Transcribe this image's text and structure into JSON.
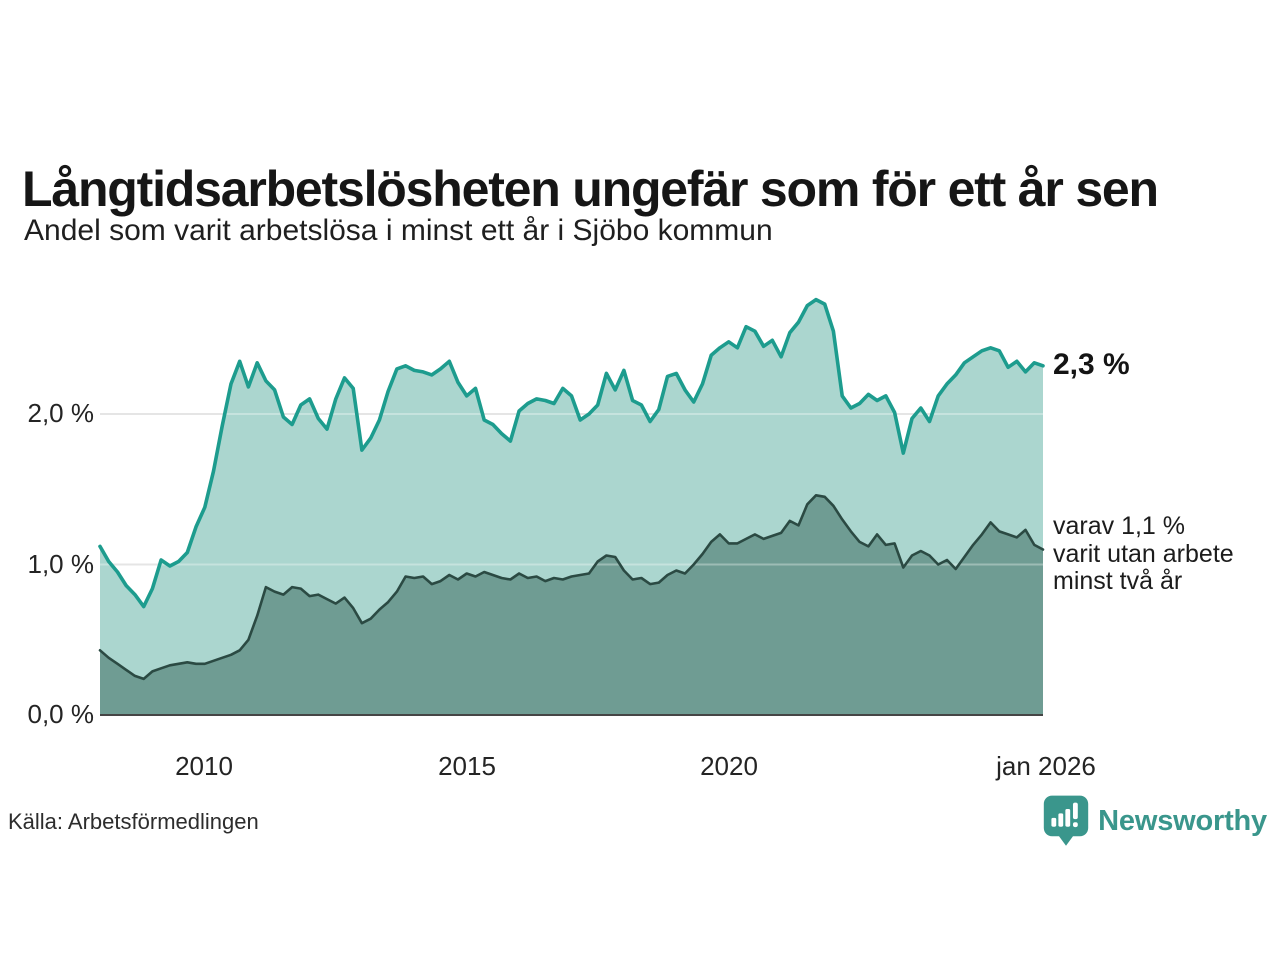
{
  "chart_data": {
    "type": "area",
    "title": "Långtidsarbetslösheten ungefär som för ett år sen",
    "subtitle": "Andel som varit arbetslösa i minst ett år i Sjöbo kommun",
    "unit": "%",
    "grid": true,
    "legend_position": "none",
    "x_start_year": 2008,
    "x_months_step": 2,
    "x_ticks": [
      {
        "label": "2010",
        "year": 2010
      },
      {
        "label": "2015",
        "year": 2015
      },
      {
        "label": "2020",
        "year": 2020
      },
      {
        "label": "jan 2026",
        "year": 2026
      }
    ],
    "y_ticks": [
      {
        "label": "0,0 %",
        "value": 0
      },
      {
        "label": "1,0 %",
        "value": 1
      },
      {
        "label": "2,0 %",
        "value": 2
      }
    ],
    "ylim": [
      0,
      2.9
    ],
    "series": [
      {
        "name": "Andel arbetslösa minst ett år",
        "end_value": 2.3,
        "end_label": "2,3 %",
        "line_color": "#1d9c8e",
        "fill_color": "#abd6cf",
        "values": [
          1.12,
          1.02,
          0.95,
          0.86,
          0.8,
          0.72,
          0.84,
          1.03,
          0.99,
          1.02,
          1.08,
          1.25,
          1.38,
          1.62,
          1.92,
          2.2,
          2.35,
          2.18,
          2.34,
          2.22,
          2.16,
          1.98,
          1.93,
          2.06,
          2.1,
          1.97,
          1.9,
          2.1,
          2.24,
          2.17,
          1.76,
          1.84,
          1.96,
          2.15,
          2.3,
          2.32,
          2.29,
          2.28,
          2.26,
          2.3,
          2.35,
          2.21,
          2.12,
          2.17,
          1.96,
          1.93,
          1.87,
          1.82,
          2.02,
          2.07,
          2.1,
          2.09,
          2.07,
          2.17,
          2.12,
          1.96,
          2.0,
          2.06,
          2.27,
          2.16,
          2.29,
          2.09,
          2.06,
          1.95,
          2.03,
          2.25,
          2.27,
          2.16,
          2.08,
          2.2,
          2.39,
          2.44,
          2.48,
          2.44,
          2.58,
          2.55,
          2.45,
          2.49,
          2.38,
          2.54,
          2.61,
          2.72,
          2.76,
          2.73,
          2.55,
          2.12,
          2.04,
          2.07,
          2.13,
          2.09,
          2.12,
          2.01,
          1.74,
          1.97,
          2.04,
          1.95,
          2.12,
          2.2,
          2.26,
          2.34,
          2.38,
          2.42,
          2.44,
          2.42,
          2.31,
          2.35,
          2.28,
          2.34,
          2.32
        ]
      },
      {
        "name": "Varav utan arbete minst två år",
        "end_value": 1.1,
        "end_label": "varav 1,1 % varit utan arbete minst två år",
        "line_color": "#2b4a43",
        "fill_color": "#6f9c93",
        "values": [
          0.43,
          0.38,
          0.34,
          0.3,
          0.26,
          0.24,
          0.29,
          0.31,
          0.33,
          0.34,
          0.35,
          0.34,
          0.34,
          0.36,
          0.38,
          0.4,
          0.43,
          0.5,
          0.66,
          0.85,
          0.82,
          0.8,
          0.85,
          0.84,
          0.79,
          0.8,
          0.77,
          0.74,
          0.78,
          0.71,
          0.61,
          0.64,
          0.7,
          0.75,
          0.82,
          0.92,
          0.91,
          0.92,
          0.87,
          0.89,
          0.93,
          0.9,
          0.94,
          0.92,
          0.95,
          0.93,
          0.91,
          0.9,
          0.94,
          0.91,
          0.92,
          0.89,
          0.91,
          0.9,
          0.92,
          0.93,
          0.94,
          1.02,
          1.06,
          1.05,
          0.96,
          0.9,
          0.91,
          0.87,
          0.88,
          0.93,
          0.96,
          0.94,
          1.0,
          1.07,
          1.15,
          1.2,
          1.14,
          1.14,
          1.17,
          1.2,
          1.17,
          1.19,
          1.21,
          1.29,
          1.26,
          1.4,
          1.46,
          1.45,
          1.39,
          1.3,
          1.22,
          1.15,
          1.12,
          1.2,
          1.13,
          1.14,
          0.98,
          1.06,
          1.09,
          1.06,
          1.0,
          1.03,
          0.97,
          1.05,
          1.13,
          1.2,
          1.28,
          1.22,
          1.2,
          1.18,
          1.23,
          1.13,
          1.1
        ]
      }
    ]
  },
  "annotations": {
    "primary": "2,3 %",
    "secondary_lines": [
      "varav 1,1 %",
      "varit utan arbete",
      "minst två år"
    ]
  },
  "footer": {
    "source": "Källa: Arbetsförmedlingen",
    "brand": "Newsworthy",
    "logo_icon": "bar-chart-speech-bubble-icon"
  },
  "colors": {
    "accent_teal": "#1d9c8e",
    "area_light": "#abd6cf",
    "area_dark": "#6f9c93",
    "line_dark": "#2b4a43",
    "gridline": "#d9d9d9",
    "axis": "#454545",
    "brand": "#3a968c",
    "text": "#161616"
  }
}
